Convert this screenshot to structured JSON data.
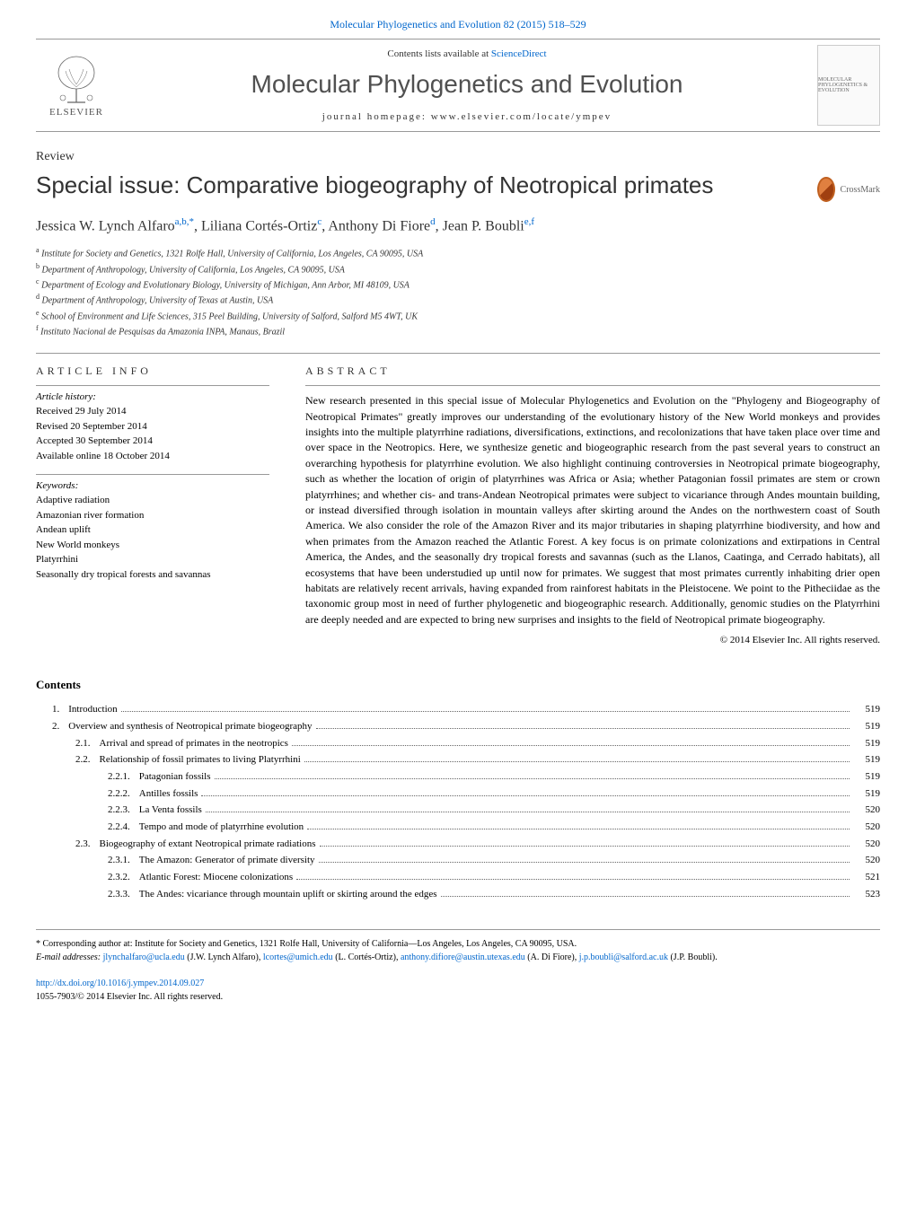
{
  "header": {
    "citation_link": "Molecular Phylogenetics and Evolution 82 (2015) 518–529",
    "contents_prefix": "Contents lists available at ",
    "contents_link": "ScienceDirect",
    "journal_name": "Molecular Phylogenetics and Evolution",
    "homepage_prefix": "journal homepage: ",
    "homepage_url": "www.elsevier.com/locate/ympev",
    "elsevier_label": "ELSEVIER",
    "cover_text": "MOLECULAR PHYLOGENETICS & EVOLUTION"
  },
  "article": {
    "type": "Review",
    "title": "Special issue: Comparative biogeography of Neotropical primates",
    "crossmark_label": "CrossMark",
    "authors_html": "Jessica W. Lynch Alfaro",
    "author1_sup": "a,b,",
    "author1_ast": "*",
    "author2": "Liliana Cortés-Ortiz",
    "author2_sup": "c",
    "author3": "Anthony Di Fiore",
    "author3_sup": "d",
    "author4": "Jean P. Boubli",
    "author4_sup": "e,f"
  },
  "affiliations": [
    {
      "sup": "a",
      "text": "Institute for Society and Genetics, 1321 Rolfe Hall, University of California, Los Angeles, CA 90095, USA"
    },
    {
      "sup": "b",
      "text": "Department of Anthropology, University of California, Los Angeles, CA 90095, USA"
    },
    {
      "sup": "c",
      "text": "Department of Ecology and Evolutionary Biology, University of Michigan, Ann Arbor, MI 48109, USA"
    },
    {
      "sup": "d",
      "text": "Department of Anthropology, University of Texas at Austin, USA"
    },
    {
      "sup": "e",
      "text": "School of Environment and Life Sciences, 315 Peel Building, University of Salford, Salford M5 4WT, UK"
    },
    {
      "sup": "f",
      "text": "Instituto Nacional de Pesquisas da Amazonia INPA, Manaus, Brazil"
    }
  ],
  "info": {
    "heading": "ARTICLE INFO",
    "history_label": "Article history:",
    "history": [
      "Received 29 July 2014",
      "Revised 20 September 2014",
      "Accepted 30 September 2014",
      "Available online 18 October 2014"
    ],
    "keywords_label": "Keywords:",
    "keywords": [
      "Adaptive radiation",
      "Amazonian river formation",
      "Andean uplift",
      "New World monkeys",
      "Platyrrhini",
      "Seasonally dry tropical forests and savannas"
    ]
  },
  "abstract": {
    "heading": "ABSTRACT",
    "text": "New research presented in this special issue of Molecular Phylogenetics and Evolution on the \"Phylogeny and Biogeography of Neotropical Primates\" greatly improves our understanding of the evolutionary history of the New World monkeys and provides insights into the multiple platyrrhine radiations, diversifications, extinctions, and recolonizations that have taken place over time and over space in the Neotropics. Here, we synthesize genetic and biogeographic research from the past several years to construct an overarching hypothesis for platyrrhine evolution. We also highlight continuing controversies in Neotropical primate biogeography, such as whether the location of origin of platyrrhines was Africa or Asia; whether Patagonian fossil primates are stem or crown platyrrhines; and whether cis- and trans-Andean Neotropical primates were subject to vicariance through Andes mountain building, or instead diversified through isolation in mountain valleys after skirting around the Andes on the northwestern coast of South America. We also consider the role of the Amazon River and its major tributaries in shaping platyrrhine biodiversity, and how and when primates from the Amazon reached the Atlantic Forest. A key focus is on primate colonizations and extirpations in Central America, the Andes, and the seasonally dry tropical forests and savannas (such as the Llanos, Caatinga, and Cerrado habitats), all ecosystems that have been understudied up until now for primates. We suggest that most primates currently inhabiting drier open habitats are relatively recent arrivals, having expanded from rainforest habitats in the Pleistocene. We point to the Pitheciidae as the taxonomic group most in need of further phylogenetic and biogeographic research. Additionally, genomic studies on the Platyrrhini are deeply needed and are expected to bring new surprises and insights to the field of Neotropical primate biogeography.",
    "copyright": "© 2014 Elsevier Inc. All rights reserved."
  },
  "contents": {
    "heading": "Contents",
    "items": [
      {
        "level": 1,
        "num": "1.",
        "title": "Introduction",
        "page": "519"
      },
      {
        "level": 1,
        "num": "2.",
        "title": "Overview and synthesis of Neotropical primate biogeography",
        "page": "519"
      },
      {
        "level": 2,
        "num": "2.1.",
        "title": "Arrival and spread of primates in the neotropics",
        "page": "519"
      },
      {
        "level": 2,
        "num": "2.2.",
        "title": "Relationship of fossil primates to living Platyrrhini",
        "page": "519"
      },
      {
        "level": 3,
        "num": "2.2.1.",
        "title": "Patagonian fossils",
        "page": "519"
      },
      {
        "level": 3,
        "num": "2.2.2.",
        "title": "Antilles fossils",
        "page": "519"
      },
      {
        "level": 3,
        "num": "2.2.3.",
        "title": "La Venta fossils",
        "page": "520"
      },
      {
        "level": 3,
        "num": "2.2.4.",
        "title": "Tempo and mode of platyrrhine evolution",
        "page": "520"
      },
      {
        "level": 2,
        "num": "2.3.",
        "title": "Biogeography of extant Neotropical primate radiations",
        "page": "520"
      },
      {
        "level": 3,
        "num": "2.3.1.",
        "title": "The Amazon: Generator of primate diversity",
        "page": "520"
      },
      {
        "level": 3,
        "num": "2.3.2.",
        "title": "Atlantic Forest: Miocene colonizations",
        "page": "521"
      },
      {
        "level": 3,
        "num": "2.3.3.",
        "title": "The Andes: vicariance through mountain uplift or skirting around the edges",
        "page": "523"
      }
    ]
  },
  "footnotes": {
    "corresponding": "* Corresponding author at: Institute for Society and Genetics, 1321 Rolfe Hall, University of California—Los Angeles, Los Angeles, CA 90095, USA.",
    "email_prefix": "E-mail addresses: ",
    "emails": [
      {
        "email": "jlynchalfaro@ucla.edu",
        "name": "(J.W. Lynch Alfaro)"
      },
      {
        "email": "lcortes@umich.edu",
        "name": "(L. Cortés-Ortiz)"
      },
      {
        "email": "anthony.difiore@austin.utexas.edu",
        "name": "(A. Di Fiore)"
      },
      {
        "email": "j.p.boubli@salford.ac.uk",
        "name": "(J.P. Boubli)"
      }
    ],
    "email_suffix": "."
  },
  "doi": {
    "url": "http://dx.doi.org/10.1016/j.ympev.2014.09.027",
    "issn": "1055-7903/© 2014 Elsevier Inc. All rights reserved."
  },
  "colors": {
    "link": "#0066cc",
    "text": "#333333",
    "border": "#999999"
  }
}
